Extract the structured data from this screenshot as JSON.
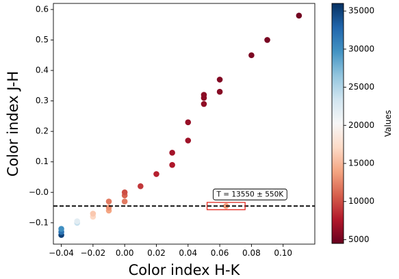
{
  "chart_data": {
    "type": "scatter",
    "xlabel": "Color index H-K",
    "ylabel": "Color index J-H",
    "xlim": [
      -0.045,
      0.12
    ],
    "ylim": [
      -0.17,
      0.62
    ],
    "xticks": [
      -0.04,
      -0.02,
      0.0,
      0.02,
      0.04,
      0.06,
      0.08,
      0.1
    ],
    "xtick_labels": [
      "−0.04",
      "−0.02",
      "0.00",
      "0.02",
      "0.04",
      "0.06",
      "0.08",
      "0.10"
    ],
    "yticks": [
      -0.1,
      0.0,
      0.1,
      0.2,
      0.3,
      0.4,
      0.5,
      0.6
    ],
    "ytick_labels": [
      "−0.1",
      "−0.0",
      "0.1",
      "0.2",
      "0.3",
      "0.4",
      "0.5",
      "0.6"
    ],
    "grid": false,
    "colorbar": {
      "label": "Values",
      "range": [
        4500,
        36000
      ],
      "ticks": [
        5000,
        10000,
        15000,
        20000,
        25000,
        30000,
        35000
      ],
      "tick_labels": [
        "5000",
        "10000",
        "15000",
        "20000",
        "25000",
        "30000",
        "35000"
      ],
      "colormap": "RdBu",
      "colors": [
        "#67001f",
        "#b2182b",
        "#d6604d",
        "#f4a582",
        "#fddbc7",
        "#f7f7f7",
        "#d1e5f0",
        "#92c5de",
        "#4393c3",
        "#2166ac",
        "#053061"
      ]
    },
    "points": [
      {
        "x": -0.04,
        "y": -0.14,
        "value": 35000
      },
      {
        "x": -0.04,
        "y": -0.13,
        "value": 32000
      },
      {
        "x": -0.04,
        "y": -0.12,
        "value": 30000
      },
      {
        "x": -0.03,
        "y": -0.1,
        "value": 24000
      },
      {
        "x": -0.03,
        "y": -0.095,
        "value": 22000
      },
      {
        "x": -0.02,
        "y": -0.08,
        "value": 17000
      },
      {
        "x": -0.02,
        "y": -0.07,
        "value": 16000
      },
      {
        "x": -0.01,
        "y": -0.06,
        "value": 14000
      },
      {
        "x": -0.01,
        "y": -0.05,
        "value": 13000
      },
      {
        "x": -0.01,
        "y": -0.03,
        "value": 12000
      },
      {
        "x": 0.0,
        "y": -0.03,
        "value": 12000
      },
      {
        "x": 0.0,
        "y": -0.01,
        "value": 11000
      },
      {
        "x": 0.0,
        "y": 0.0,
        "value": 10000
      },
      {
        "x": 0.01,
        "y": 0.02,
        "value": 9000
      },
      {
        "x": 0.02,
        "y": 0.06,
        "value": 8000
      },
      {
        "x": 0.03,
        "y": 0.09,
        "value": 7500
      },
      {
        "x": 0.03,
        "y": 0.13,
        "value": 7000
      },
      {
        "x": 0.04,
        "y": 0.17,
        "value": 6800
      },
      {
        "x": 0.04,
        "y": 0.23,
        "value": 6500
      },
      {
        "x": 0.05,
        "y": 0.29,
        "value": 6200
      },
      {
        "x": 0.05,
        "y": 0.31,
        "value": 6000
      },
      {
        "x": 0.05,
        "y": 0.32,
        "value": 6000
      },
      {
        "x": 0.06,
        "y": 0.33,
        "value": 5800
      },
      {
        "x": 0.06,
        "y": 0.37,
        "value": 5600
      },
      {
        "x": 0.08,
        "y": 0.45,
        "value": 5400
      },
      {
        "x": 0.09,
        "y": 0.5,
        "value": 5200
      },
      {
        "x": 0.11,
        "y": 0.58,
        "value": 5000
      }
    ],
    "hline": {
      "y": -0.045,
      "style": "dashed",
      "color": "#000000"
    },
    "highlight_point": {
      "x": 0.064,
      "y": -0.045,
      "value": 13550
    },
    "highlight_box": {
      "x": [
        0.052,
        0.076
      ],
      "y": [
        -0.057,
        -0.033
      ],
      "color": "#e4291f"
    },
    "annotation": {
      "text": "T = 13550 ± 550K",
      "x": 0.058,
      "y": -0.007
    }
  }
}
